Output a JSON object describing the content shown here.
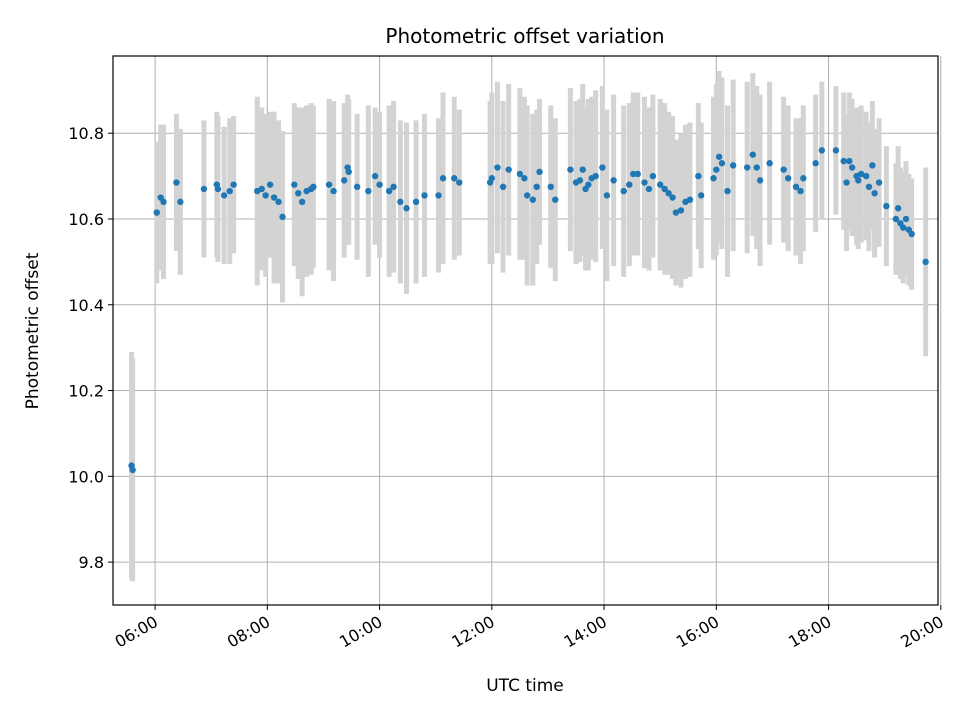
{
  "chart_data": {
    "type": "scatter",
    "title": "Photometric offset variation",
    "xlabel": "UTC time",
    "ylabel": "Photometric offset",
    "grid": true,
    "x_unit": "hours",
    "xlim": [
      5.25,
      19.95
    ],
    "ylim": [
      9.7,
      10.98
    ],
    "x_ticks": [
      6,
      8,
      10,
      12,
      14,
      16,
      18,
      20
    ],
    "x_tick_labels": [
      "06:00",
      "08:00",
      "10:00",
      "12:00",
      "14:00",
      "16:00",
      "18:00",
      "20:00"
    ],
    "y_ticks": [
      9.8,
      10.0,
      10.2,
      10.4,
      10.6,
      10.8
    ],
    "y_tick_labels": [
      "9.8",
      "10.0",
      "10.2",
      "10.4",
      "10.6",
      "10.8"
    ],
    "colors": {
      "points": "#1f77b4",
      "errorbars": "#d3d3d3",
      "grid": "#b0b0b0"
    },
    "points": [
      {
        "x": 5.58,
        "y": 10.025,
        "err": 0.265
      },
      {
        "x": 5.6,
        "y": 10.015,
        "err": 0.26
      },
      {
        "x": 6.03,
        "y": 10.615,
        "err": 0.165
      },
      {
        "x": 6.1,
        "y": 10.65,
        "err": 0.17
      },
      {
        "x": 6.15,
        "y": 10.64,
        "err": 0.18
      },
      {
        "x": 6.38,
        "y": 10.685,
        "err": 0.16
      },
      {
        "x": 6.45,
        "y": 10.64,
        "err": 0.17
      },
      {
        "x": 6.87,
        "y": 10.67,
        "err": 0.16
      },
      {
        "x": 7.1,
        "y": 10.68,
        "err": 0.17
      },
      {
        "x": 7.12,
        "y": 10.67,
        "err": 0.17
      },
      {
        "x": 7.23,
        "y": 10.655,
        "err": 0.16
      },
      {
        "x": 7.33,
        "y": 10.665,
        "err": 0.17
      },
      {
        "x": 7.4,
        "y": 10.68,
        "err": 0.16
      },
      {
        "x": 7.82,
        "y": 10.665,
        "err": 0.22
      },
      {
        "x": 7.9,
        "y": 10.67,
        "err": 0.19
      },
      {
        "x": 7.97,
        "y": 10.655,
        "err": 0.19
      },
      {
        "x": 8.05,
        "y": 10.68,
        "err": 0.17
      },
      {
        "x": 8.12,
        "y": 10.65,
        "err": 0.2
      },
      {
        "x": 8.2,
        "y": 10.64,
        "err": 0.19
      },
      {
        "x": 8.27,
        "y": 10.605,
        "err": 0.2
      },
      {
        "x": 8.48,
        "y": 10.68,
        "err": 0.19
      },
      {
        "x": 8.55,
        "y": 10.66,
        "err": 0.2
      },
      {
        "x": 8.62,
        "y": 10.64,
        "err": 0.22
      },
      {
        "x": 8.7,
        "y": 10.665,
        "err": 0.2
      },
      {
        "x": 8.78,
        "y": 10.67,
        "err": 0.2
      },
      {
        "x": 8.82,
        "y": 10.675,
        "err": 0.19
      },
      {
        "x": 9.1,
        "y": 10.68,
        "err": 0.2
      },
      {
        "x": 9.18,
        "y": 10.665,
        "err": 0.21
      },
      {
        "x": 9.37,
        "y": 10.69,
        "err": 0.18
      },
      {
        "x": 9.43,
        "y": 10.72,
        "err": 0.17
      },
      {
        "x": 9.45,
        "y": 10.71,
        "err": 0.17
      },
      {
        "x": 9.6,
        "y": 10.675,
        "err": 0.17
      },
      {
        "x": 9.8,
        "y": 10.665,
        "err": 0.2
      },
      {
        "x": 9.92,
        "y": 10.7,
        "err": 0.16
      },
      {
        "x": 10.0,
        "y": 10.68,
        "err": 0.17
      },
      {
        "x": 10.17,
        "y": 10.665,
        "err": 0.2
      },
      {
        "x": 10.25,
        "y": 10.675,
        "err": 0.2
      },
      {
        "x": 10.37,
        "y": 10.64,
        "err": 0.19
      },
      {
        "x": 10.48,
        "y": 10.625,
        "err": 0.2
      },
      {
        "x": 10.65,
        "y": 10.64,
        "err": 0.19
      },
      {
        "x": 10.8,
        "y": 10.655,
        "err": 0.19
      },
      {
        "x": 11.05,
        "y": 10.655,
        "err": 0.18
      },
      {
        "x": 11.13,
        "y": 10.695,
        "err": 0.2
      },
      {
        "x": 11.33,
        "y": 10.695,
        "err": 0.19
      },
      {
        "x": 11.42,
        "y": 10.685,
        "err": 0.17
      },
      {
        "x": 11.97,
        "y": 10.685,
        "err": 0.19
      },
      {
        "x": 12.0,
        "y": 10.695,
        "err": 0.2
      },
      {
        "x": 12.1,
        "y": 10.72,
        "err": 0.2
      },
      {
        "x": 12.2,
        "y": 10.675,
        "err": 0.2
      },
      {
        "x": 12.3,
        "y": 10.715,
        "err": 0.2
      },
      {
        "x": 12.5,
        "y": 10.705,
        "err": 0.2
      },
      {
        "x": 12.58,
        "y": 10.695,
        "err": 0.19
      },
      {
        "x": 12.63,
        "y": 10.655,
        "err": 0.21
      },
      {
        "x": 12.73,
        "y": 10.645,
        "err": 0.2
      },
      {
        "x": 12.8,
        "y": 10.675,
        "err": 0.18
      },
      {
        "x": 12.85,
        "y": 10.71,
        "err": 0.17
      },
      {
        "x": 13.05,
        "y": 10.675,
        "err": 0.19
      },
      {
        "x": 13.13,
        "y": 10.645,
        "err": 0.19
      },
      {
        "x": 13.4,
        "y": 10.715,
        "err": 0.19
      },
      {
        "x": 13.5,
        "y": 10.685,
        "err": 0.19
      },
      {
        "x": 13.57,
        "y": 10.69,
        "err": 0.19
      },
      {
        "x": 13.62,
        "y": 10.715,
        "err": 0.2
      },
      {
        "x": 13.67,
        "y": 10.67,
        "err": 0.19
      },
      {
        "x": 13.72,
        "y": 10.68,
        "err": 0.2
      },
      {
        "x": 13.78,
        "y": 10.695,
        "err": 0.19
      },
      {
        "x": 13.85,
        "y": 10.7,
        "err": 0.2
      },
      {
        "x": 13.97,
        "y": 10.72,
        "err": 0.19
      },
      {
        "x": 14.05,
        "y": 10.655,
        "err": 0.2
      },
      {
        "x": 14.17,
        "y": 10.69,
        "err": 0.2
      },
      {
        "x": 14.35,
        "y": 10.665,
        "err": 0.2
      },
      {
        "x": 14.45,
        "y": 10.68,
        "err": 0.19
      },
      {
        "x": 14.52,
        "y": 10.705,
        "err": 0.19
      },
      {
        "x": 14.6,
        "y": 10.705,
        "err": 0.19
      },
      {
        "x": 14.72,
        "y": 10.685,
        "err": 0.2
      },
      {
        "x": 14.8,
        "y": 10.67,
        "err": 0.19
      },
      {
        "x": 14.87,
        "y": 10.7,
        "err": 0.19
      },
      {
        "x": 15.0,
        "y": 10.68,
        "err": 0.2
      },
      {
        "x": 15.08,
        "y": 10.67,
        "err": 0.2
      },
      {
        "x": 15.15,
        "y": 10.66,
        "err": 0.19
      },
      {
        "x": 15.22,
        "y": 10.65,
        "err": 0.19
      },
      {
        "x": 15.28,
        "y": 10.615,
        "err": 0.17
      },
      {
        "x": 15.37,
        "y": 10.62,
        "err": 0.18
      },
      {
        "x": 15.45,
        "y": 10.64,
        "err": 0.18
      },
      {
        "x": 15.53,
        "y": 10.645,
        "err": 0.18
      },
      {
        "x": 15.68,
        "y": 10.7,
        "err": 0.17
      },
      {
        "x": 15.73,
        "y": 10.655,
        "err": 0.17
      },
      {
        "x": 15.95,
        "y": 10.695,
        "err": 0.19
      },
      {
        "x": 16.0,
        "y": 10.715,
        "err": 0.2
      },
      {
        "x": 16.05,
        "y": 10.745,
        "err": 0.2
      },
      {
        "x": 16.1,
        "y": 10.73,
        "err": 0.2
      },
      {
        "x": 16.2,
        "y": 10.665,
        "err": 0.2
      },
      {
        "x": 16.3,
        "y": 10.725,
        "err": 0.2
      },
      {
        "x": 16.55,
        "y": 10.72,
        "err": 0.2
      },
      {
        "x": 16.65,
        "y": 10.75,
        "err": 0.19
      },
      {
        "x": 16.72,
        "y": 10.72,
        "err": 0.19
      },
      {
        "x": 16.78,
        "y": 10.69,
        "err": 0.2
      },
      {
        "x": 16.95,
        "y": 10.73,
        "err": 0.19
      },
      {
        "x": 17.2,
        "y": 10.715,
        "err": 0.17
      },
      {
        "x": 17.28,
        "y": 10.695,
        "err": 0.17
      },
      {
        "x": 17.42,
        "y": 10.675,
        "err": 0.16
      },
      {
        "x": 17.5,
        "y": 10.665,
        "err": 0.17
      },
      {
        "x": 17.55,
        "y": 10.695,
        "err": 0.17
      },
      {
        "x": 17.77,
        "y": 10.73,
        "err": 0.16
      },
      {
        "x": 17.88,
        "y": 10.76,
        "err": 0.16
      },
      {
        "x": 18.13,
        "y": 10.76,
        "err": 0.15
      },
      {
        "x": 18.27,
        "y": 10.735,
        "err": 0.16
      },
      {
        "x": 18.32,
        "y": 10.685,
        "err": 0.16
      },
      {
        "x": 18.37,
        "y": 10.735,
        "err": 0.16
      },
      {
        "x": 18.42,
        "y": 10.72,
        "err": 0.16
      },
      {
        "x": 18.5,
        "y": 10.7,
        "err": 0.16
      },
      {
        "x": 18.53,
        "y": 10.69,
        "err": 0.16
      },
      {
        "x": 18.58,
        "y": 10.705,
        "err": 0.16
      },
      {
        "x": 18.67,
        "y": 10.7,
        "err": 0.15
      },
      {
        "x": 18.72,
        "y": 10.675,
        "err": 0.15
      },
      {
        "x": 18.78,
        "y": 10.725,
        "err": 0.15
      },
      {
        "x": 18.82,
        "y": 10.66,
        "err": 0.15
      },
      {
        "x": 18.9,
        "y": 10.685,
        "err": 0.15
      },
      {
        "x": 19.03,
        "y": 10.63,
        "err": 0.14
      },
      {
        "x": 19.2,
        "y": 10.6,
        "err": 0.13
      },
      {
        "x": 19.24,
        "y": 10.625,
        "err": 0.145
      },
      {
        "x": 19.28,
        "y": 10.59,
        "err": 0.13
      },
      {
        "x": 19.33,
        "y": 10.58,
        "err": 0.13
      },
      {
        "x": 19.38,
        "y": 10.6,
        "err": 0.135
      },
      {
        "x": 19.43,
        "y": 10.575,
        "err": 0.13
      },
      {
        "x": 19.48,
        "y": 10.565,
        "err": 0.13
      },
      {
        "x": 19.73,
        "y": 10.5,
        "err": 0.22
      }
    ]
  }
}
